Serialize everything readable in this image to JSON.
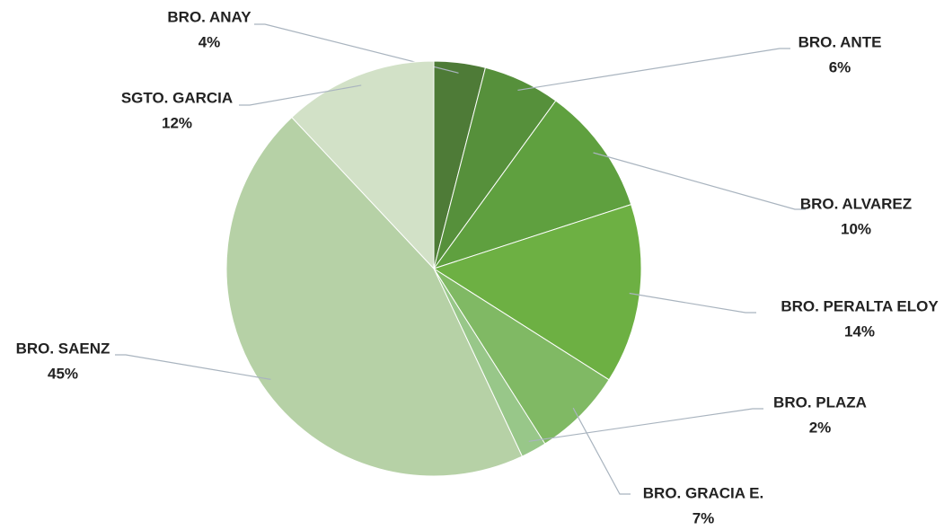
{
  "chart_data": {
    "type": "pie",
    "categories": [
      "BRO. ANAY",
      "BRO. ANTE",
      "BRO. ALVAREZ",
      "BRO. PERALTA ELOY",
      "BRO. GRACIA E.",
      "BRO. PLAZA",
      "BRO. SAENZ",
      "SGTO. GARCIA"
    ],
    "values": [
      4,
      6,
      10,
      14,
      7,
      2,
      45,
      12
    ],
    "value_labels": [
      "4%",
      "6%",
      "10%",
      "14%",
      "7%",
      "2%",
      "45%",
      "12%"
    ],
    "colors": [
      "#4e7b37",
      "#56903b",
      "#5fa03f",
      "#6db043",
      "#80b964",
      "#98c789",
      "#b6d1a6",
      "#d2e1c7"
    ]
  }
}
